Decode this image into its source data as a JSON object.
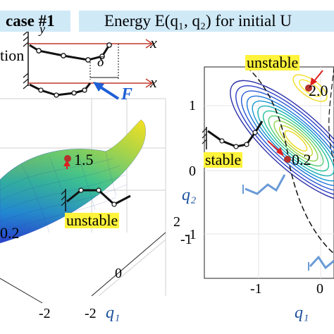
{
  "header": {
    "case_label": "case #1",
    "title": "Energy E(q₁, q₂) for initial U"
  },
  "left_panel": {
    "config_axis_x": "x",
    "config_axis_y": "y",
    "config_label_partial": "tion",
    "delta_label": "δ",
    "force_label": "F",
    "surface_point_value": "1.5",
    "surface_low_value": "0.2",
    "unstable_label": "unstable",
    "ticks": {
      "z_tick_a": "2",
      "z_tick_b": "-1",
      "q_tick_0": "0",
      "q_tick_neg2_a": "-2",
      "q_tick_neg2_b": "-2"
    },
    "xlabel": "q₁",
    "colors": {
      "surface_high": "#f5d21c",
      "surface_mid": "#27b9a6",
      "surface_low": "#2a5bd7"
    }
  },
  "right_panel": {
    "unstable_label": "unstable",
    "stable_label": "stable",
    "saddle_value": "2.0",
    "min_value": "0.2",
    "ylabel": "q₂",
    "xlabel": "q₁",
    "ticks": {
      "y1": "1",
      "y0": "0",
      "yneg1": "-1",
      "xneg1": "-1",
      "x0": "0"
    },
    "colors": {
      "marker": "#b5322c",
      "arrow": "#e02020",
      "robot": "#6a9ad6",
      "highlight": "#fff33b"
    }
  }
}
